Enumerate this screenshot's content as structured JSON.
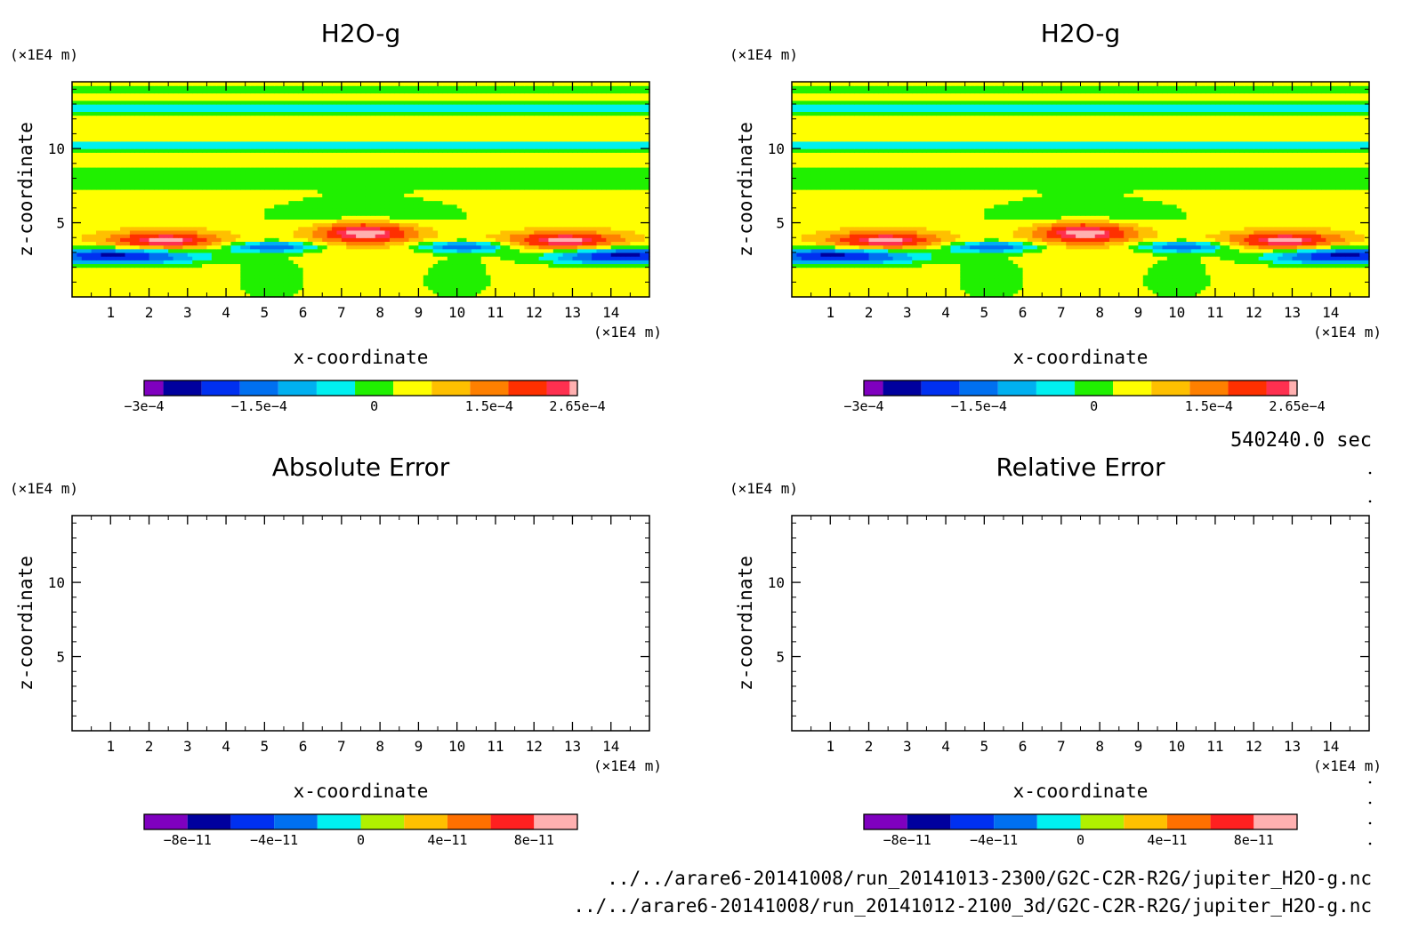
{
  "figure": {
    "time_label": "540240.0 sec",
    "file_paths": [
      "../../arare6-20141008/run_20141013-2300/G2C-C2R-R2G/jupiter_H2O-g.nc",
      "../../arare6-20141008/run_20141012-2100_3d/G2C-C2R-R2G/jupiter_H2O-g.nc"
    ]
  },
  "chart_data": [
    {
      "type": "heatmap",
      "title": "H2O-g",
      "xlabel": "x-coordinate",
      "ylabel": "z-coordinate",
      "x_unit": "(×1E4 m)",
      "y_unit": "(×1E4 m)",
      "xlim": [
        0,
        15
      ],
      "ylim": [
        0,
        14.5
      ],
      "xticks": [
        "1",
        "2",
        "3",
        "4",
        "5",
        "6",
        "7",
        "8",
        "9",
        "10",
        "11",
        "12",
        "13",
        "14"
      ],
      "yticks": [
        "5",
        "10"
      ],
      "field": {
        "base": 5e-05,
        "bands": [
          {
            "z": 14.0,
            "w": 0.25,
            "a": -8e-05
          },
          {
            "z": 12.8,
            "w": 0.35,
            "a": -0.00011
          },
          {
            "z": 10.2,
            "w": 0.3,
            "a": -0.00013
          },
          {
            "z": 8.0,
            "w": 0.8,
            "a": -5e-05
          }
        ],
        "blobs": [
          {
            "x": 2.4,
            "z": 3.8,
            "sx": 1.5,
            "sz": 0.65,
            "a": 0.00023
          },
          {
            "x": 7.6,
            "z": 4.4,
            "sx": 1.4,
            "sz": 0.8,
            "a": 0.000265
          },
          {
            "x": 12.8,
            "z": 3.8,
            "sx": 1.5,
            "sz": 0.65,
            "a": 0.00023
          },
          {
            "x": 1.2,
            "z": 2.8,
            "sx": 2.2,
            "sz": 0.55,
            "a": -0.0003
          },
          {
            "x": 5.2,
            "z": 3.4,
            "sx": 1.2,
            "sz": 0.35,
            "a": -0.00022
          },
          {
            "x": 10.2,
            "z": 3.4,
            "sx": 1.2,
            "sz": 0.35,
            "a": -0.00022
          },
          {
            "x": 14.3,
            "z": 2.8,
            "sx": 2.0,
            "sz": 0.55,
            "a": -0.0003
          },
          {
            "x": 7.6,
            "z": 5.5,
            "sx": 2.5,
            "sz": 1.2,
            "a": -8e-05
          },
          {
            "x": 5.2,
            "z": 1.2,
            "sx": 0.9,
            "sz": 1.5,
            "a": -6e-05
          },
          {
            "x": 10.0,
            "z": 1.2,
            "sx": 0.9,
            "sz": 1.5,
            "a": -6e-05
          }
        ]
      },
      "colorbar": {
        "levels": [
          -0.0003,
          -0.000275,
          -0.000225,
          -0.000175,
          -0.000125,
          -7.5e-05,
          -2.5e-05,
          2.5e-05,
          7.5e-05,
          0.000125,
          0.000175,
          0.000225,
          0.000255,
          0.000265
        ],
        "colors": [
          "#7f00bf",
          "#00009e",
          "#0030f0",
          "#0070f0",
          "#00b0f0",
          "#00f0f0",
          "#20f000",
          "#ffff00",
          "#ffc000",
          "#ff8000",
          "#ff3000",
          "#ff3050",
          "#ffb0b0"
        ],
        "tick_labels": [
          {
            "value": -0.0003,
            "text": "−3e−4"
          },
          {
            "value": -0.00015,
            "text": "−1.5e−4"
          },
          {
            "value": 0,
            "text": "0"
          },
          {
            "value": 0.00015,
            "text": "1.5e−4"
          },
          {
            "value": 0.000265,
            "text": "2.65e−4"
          }
        ]
      }
    },
    {
      "type": "heatmap",
      "title": "H2O-g",
      "xlabel": "x-coordinate",
      "ylabel": "z-coordinate",
      "x_unit": "(×1E4 m)",
      "y_unit": "(×1E4 m)",
      "xlim": [
        0,
        15
      ],
      "ylim": [
        0,
        14.5
      ],
      "xticks": [
        "1",
        "2",
        "3",
        "4",
        "5",
        "6",
        "7",
        "8",
        "9",
        "10",
        "11",
        "12",
        "13",
        "14"
      ],
      "yticks": [
        "5",
        "10"
      ],
      "field": "same_as_panel_1",
      "colorbar": {
        "levels": [
          -0.0003,
          -0.000275,
          -0.000225,
          -0.000175,
          -0.000125,
          -7.5e-05,
          -2.5e-05,
          2.5e-05,
          7.5e-05,
          0.000125,
          0.000175,
          0.000225,
          0.000255,
          0.000265
        ],
        "colors": [
          "#7f00bf",
          "#00009e",
          "#0030f0",
          "#0070f0",
          "#00b0f0",
          "#00f0f0",
          "#20f000",
          "#ffff00",
          "#ffc000",
          "#ff8000",
          "#ff3000",
          "#ff3050",
          "#ffb0b0"
        ],
        "tick_labels": [
          {
            "value": -0.0003,
            "text": "−3e−4"
          },
          {
            "value": -0.00015,
            "text": "−1.5e−4"
          },
          {
            "value": 0,
            "text": "0"
          },
          {
            "value": 0.00015,
            "text": "1.5e−4"
          },
          {
            "value": 0.000265,
            "text": "2.65e−4"
          }
        ]
      }
    },
    {
      "type": "heatmap",
      "title": "Absolute Error",
      "xlabel": "x-coordinate",
      "ylabel": "z-coordinate",
      "x_unit": "(×1E4 m)",
      "y_unit": "(×1E4 m)",
      "xlim": [
        0,
        15
      ],
      "ylim": [
        0,
        14.5
      ],
      "xticks": [
        "1",
        "2",
        "3",
        "4",
        "5",
        "6",
        "7",
        "8",
        "9",
        "10",
        "11",
        "12",
        "13",
        "14"
      ],
      "yticks": [
        "5",
        "10"
      ],
      "field": null,
      "colorbar": {
        "levels": [
          -1e-10,
          -8e-11,
          -6e-11,
          -4e-11,
          -2e-11,
          0,
          2e-11,
          4e-11,
          6e-11,
          8e-11,
          1e-10
        ],
        "colors": [
          "#7f00bf",
          "#00009e",
          "#0030f0",
          "#0070f0",
          "#00f0f0",
          "#b0f000",
          "#ffc000",
          "#ff7000",
          "#ff2020",
          "#ffb0b0"
        ],
        "tick_labels": [
          {
            "value": -8e-11,
            "text": "−8e−11"
          },
          {
            "value": -4e-11,
            "text": "−4e−11"
          },
          {
            "value": 0,
            "text": "0"
          },
          {
            "value": 4e-11,
            "text": "4e−11"
          },
          {
            "value": 8e-11,
            "text": "8e−11"
          }
        ]
      }
    },
    {
      "type": "heatmap",
      "title": "Relative Error",
      "xlabel": "x-coordinate",
      "ylabel": "z-coordinate",
      "x_unit": "(×1E4 m)",
      "y_unit": "(×1E4 m)",
      "xlim": [
        0,
        15
      ],
      "ylim": [
        0,
        14.5
      ],
      "xticks": [
        "1",
        "2",
        "3",
        "4",
        "5",
        "6",
        "7",
        "8",
        "9",
        "10",
        "11",
        "12",
        "13",
        "14"
      ],
      "yticks": [
        "5",
        "10"
      ],
      "field": null,
      "colorbar": {
        "levels": [
          -1e-10,
          -8e-11,
          -6e-11,
          -4e-11,
          -2e-11,
          0,
          2e-11,
          4e-11,
          6e-11,
          8e-11,
          1e-10
        ],
        "colors": [
          "#7f00bf",
          "#00009e",
          "#0030f0",
          "#0070f0",
          "#00f0f0",
          "#b0f000",
          "#ffc000",
          "#ff7000",
          "#ff2020",
          "#ffb0b0"
        ],
        "tick_labels": [
          {
            "value": -8e-11,
            "text": "−8e−11"
          },
          {
            "value": -4e-11,
            "text": "−4e−11"
          },
          {
            "value": 0,
            "text": "0"
          },
          {
            "value": 4e-11,
            "text": "4e−11"
          },
          {
            "value": 8e-11,
            "text": "8e−11"
          }
        ]
      }
    }
  ]
}
